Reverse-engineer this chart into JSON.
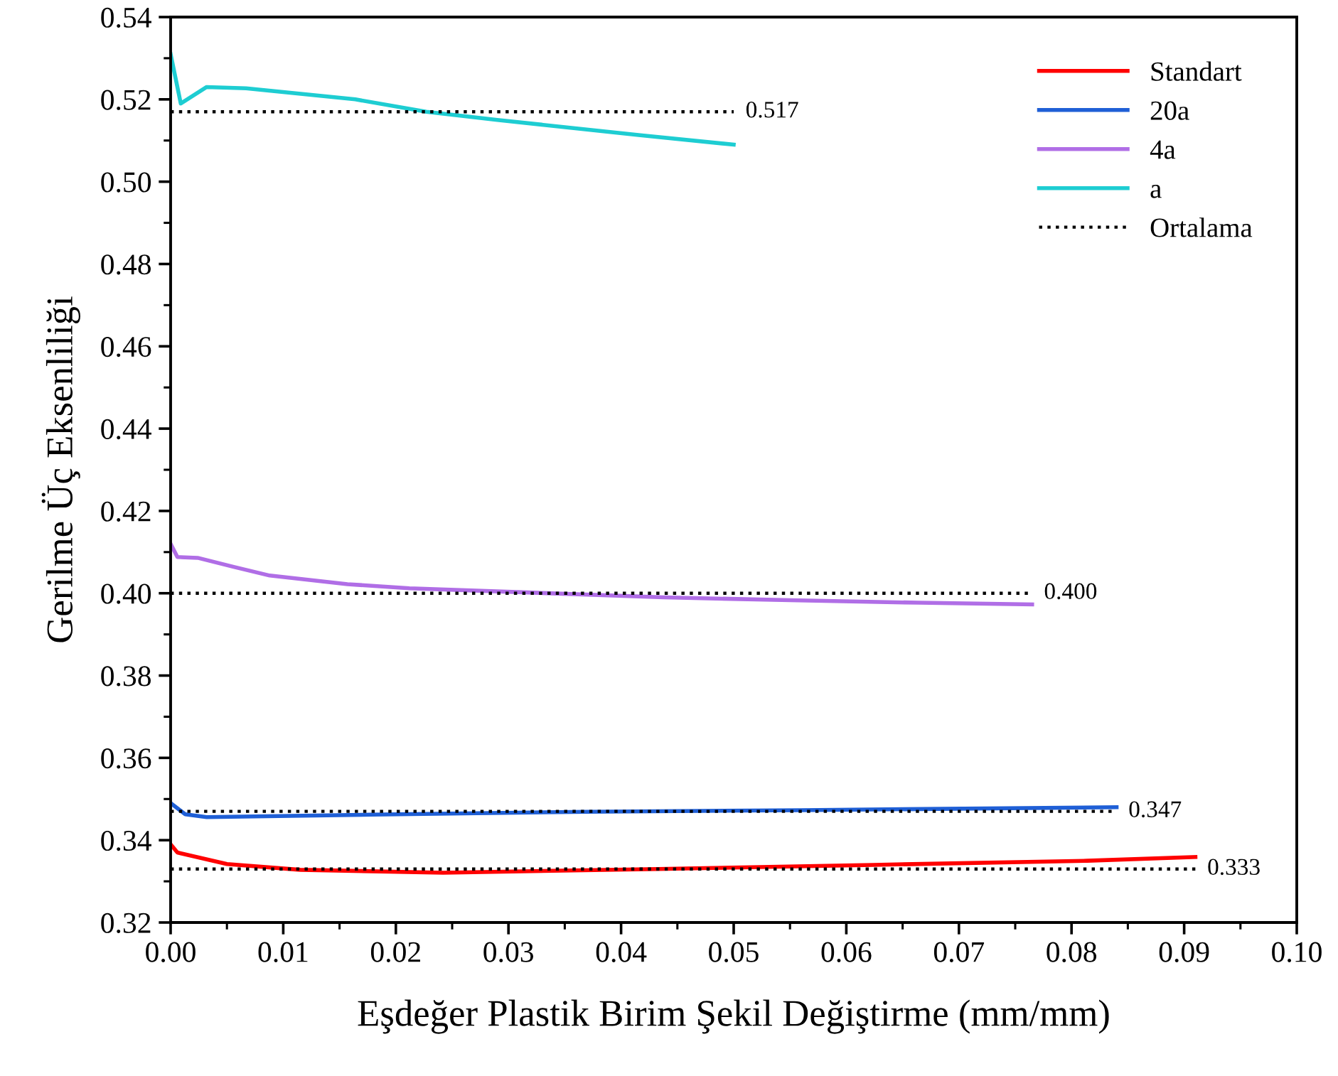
{
  "chart_data": {
    "type": "line",
    "xlabel": "Eşdeğer Plastik Birim Şekil Değiştirme (mm/mm)",
    "ylabel": "Gerilme Üç Eksenliliği",
    "xlim": [
      0,
      0.1
    ],
    "xticks": [
      {
        "value": 0,
        "label": "0.00"
      },
      {
        "value": 0.01,
        "label": "0.01"
      },
      {
        "value": 0.02,
        "label": "0.02"
      },
      {
        "value": 0.03,
        "label": "0.03"
      },
      {
        "value": 0.04,
        "label": "0.04"
      },
      {
        "value": 0.05,
        "label": "0.05"
      },
      {
        "value": 0.06,
        "label": "0.06"
      },
      {
        "value": 0.07,
        "label": "0.07"
      },
      {
        "value": 0.08,
        "label": "0.08"
      },
      {
        "value": 0.09,
        "label": "0.09"
      },
      {
        "value": 0.1,
        "label": "0.10"
      }
    ],
    "ylim": [
      0.32,
      0.54
    ],
    "yticks": [
      0.32,
      0.34,
      0.36,
      0.38,
      {
        "value": 0.4,
        "label": "0.40"
      },
      0.42,
      0.44,
      0.46,
      0.48,
      {
        "value": 0.5,
        "label": "0.50"
      },
      0.52,
      0.54
    ],
    "grid": false,
    "legend": "top right",
    "line_style": "solid",
    "marker": "none",
    "series": [
      {
        "name": "Standart",
        "color": "#ff0000",
        "x": [
          0,
          0.0006,
          0.005,
          0.0115,
          0.0242,
          0.0433,
          0.0624,
          0.0814,
          0.091
        ],
        "values": [
          0.339,
          0.337,
          0.3342,
          0.3328,
          0.3321,
          0.333,
          0.334,
          0.335,
          0.3359
        ]
      },
      {
        "name": "20a",
        "color": "#1f5fd6",
        "x": [
          0,
          0.0013,
          0.0032,
          0.0178,
          0.0369,
          0.056,
          0.084
        ],
        "values": [
          0.349,
          0.3463,
          0.3456,
          0.3462,
          0.3469,
          0.3473,
          0.348
        ]
      },
      {
        "name": "4a",
        "color": "#b06ee6",
        "x": [
          0,
          0.0006,
          0.0024,
          0.0056,
          0.0088,
          0.0157,
          0.0212,
          0.0326,
          0.0438,
          0.055,
          0.0664,
          0.0765
        ],
        "values": [
          0.412,
          0.4088,
          0.4086,
          0.4064,
          0.4043,
          0.4022,
          0.4012,
          0.4001,
          0.399,
          0.3983,
          0.3977,
          0.3973
        ]
      },
      {
        "name": "a",
        "color": "#1ecdd2",
        "x": [
          0,
          0.0009,
          0.0032,
          0.0067,
          0.0164,
          0.0227,
          0.029,
          0.0417,
          0.05
        ],
        "values": [
          0.531,
          0.519,
          0.523,
          0.5227,
          0.52,
          0.517,
          0.515,
          0.5113,
          0.509
        ]
      },
      {
        "name": "Ortalama",
        "color": "#000000",
        "line_style": "dotted",
        "x": [
          0,
          0.091
        ],
        "values": [
          0.333,
          0.333
        ]
      },
      {
        "color": "#000000",
        "line_style": "dotted",
        "x": [
          0,
          0.084
        ],
        "values": [
          0.347,
          0.347
        ]
      },
      {
        "color": "#000000",
        "line_style": "dotted",
        "x": [
          0,
          0.0765
        ],
        "values": [
          0.4,
          0.4
        ]
      },
      {
        "color": "#000000",
        "line_style": "dotted",
        "x": [
          0,
          0.05
        ],
        "values": [
          0.517,
          0.517
        ]
      }
    ],
    "annotations": [
      {
        "text": "0.333",
        "x": 0.091,
        "y": 0.333
      },
      {
        "text": "0.347",
        "x": 0.084,
        "y": 0.347
      },
      {
        "text": "0.400",
        "x": 0.0765,
        "y": 0.4
      },
      {
        "text": "0.517",
        "x": 0.05,
        "y": 0.517
      }
    ]
  }
}
